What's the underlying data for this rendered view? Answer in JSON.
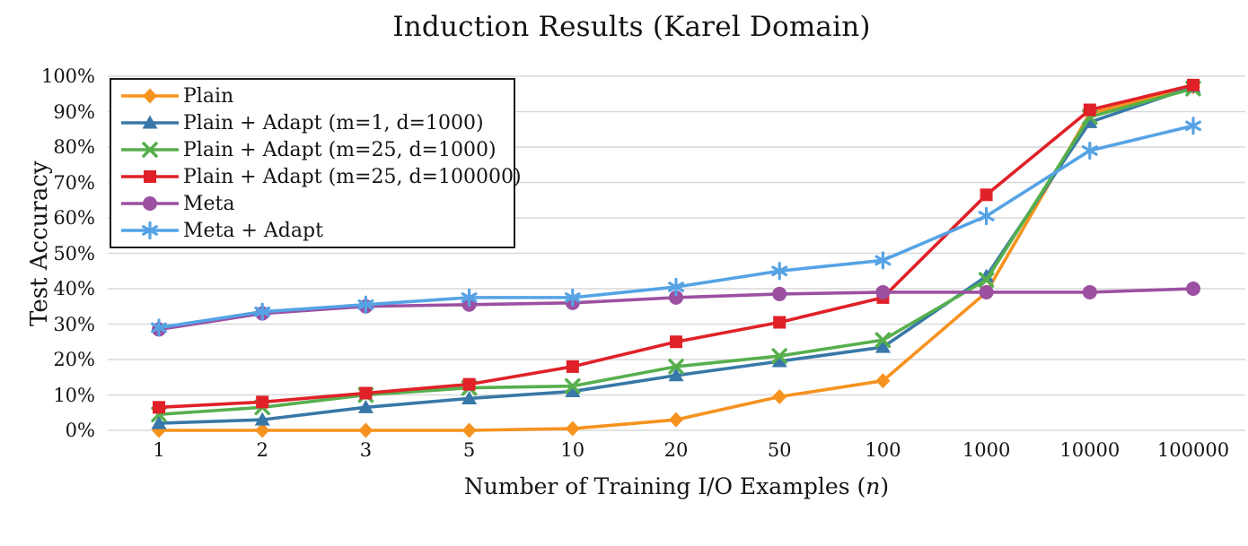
{
  "title": "Induction Results (Karel Domain)",
  "chart_data": {
    "type": "line",
    "title": "Induction Results (Karel Domain)",
    "xlabel": "Number of Training I/O Examples (n)",
    "xlabel_prefix": "Number of Training I/O Examples (",
    "xlabel_var": "n",
    "xlabel_suffix": ")",
    "ylabel": "Test Accuracy",
    "x_scale": "categorical (log-spaced sample sizes)",
    "categories": [
      "1",
      "2",
      "3",
      "5",
      "10",
      "20",
      "50",
      "100",
      "1000",
      "10000",
      "100000"
    ],
    "y_ticks": [
      "100%",
      "90%",
      "80%",
      "70%",
      "60%",
      "50%",
      "40%",
      "30%",
      "20%",
      "10%",
      "0%"
    ],
    "ylim": [
      0,
      100
    ],
    "grid": "horizontal",
    "gridline_color": "#D9D9D9",
    "legend_position": "top-left",
    "series": [
      {
        "name": "Plain",
        "color": "#F6921E",
        "marker": "diamond",
        "values": [
          0,
          0,
          0,
          0,
          0.5,
          3,
          9.5,
          14,
          39,
          89.5,
          97
        ]
      },
      {
        "name": "Plain + Adapt (m=1, d=1000)",
        "color": "#3878A8",
        "marker": "triangle",
        "values": [
          2,
          3,
          6.5,
          9,
          11,
          15.5,
          19.5,
          23.5,
          43.5,
          87,
          97
        ]
      },
      {
        "name": "Plain + Adapt (m=25, d=1000)",
        "color": "#56AF4D",
        "marker": "x",
        "values": [
          4.5,
          6.5,
          10,
          12,
          12.5,
          18,
          21,
          25.5,
          42.5,
          88.5,
          96.5
        ]
      },
      {
        "name": "Plain + Adapt (m=25, d=100000)",
        "color": "#E02128",
        "marker": "square",
        "values": [
          6.5,
          8,
          10.5,
          13,
          18,
          25,
          30.5,
          37.5,
          66.5,
          90.5,
          97.5
        ]
      },
      {
        "name": "Meta",
        "color": "#9C50A1",
        "marker": "circle",
        "values": [
          28.5,
          33,
          35,
          35.5,
          36,
          37.5,
          38.5,
          39,
          39,
          39,
          40
        ]
      },
      {
        "name": "Meta + Adapt",
        "color": "#55A3E5",
        "marker": "asterisk",
        "values": [
          29,
          33.5,
          35.5,
          37.5,
          37.5,
          40.5,
          45,
          48,
          60.5,
          79,
          86
        ]
      }
    ]
  }
}
